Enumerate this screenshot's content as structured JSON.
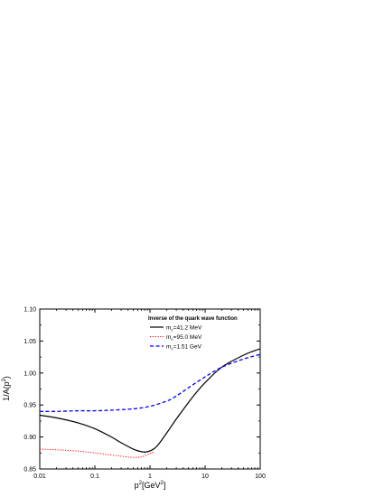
{
  "chart_data": {
    "type": "line",
    "xscale": "log",
    "xlim": [
      0.01,
      100
    ],
    "ylim": [
      0.85,
      1.1
    ],
    "xticks": [
      {
        "value": 0.01,
        "label": "0.01"
      },
      {
        "value": 0.1,
        "label": "0.1"
      },
      {
        "value": 1,
        "label": "1"
      },
      {
        "value": 10,
        "label": "10"
      },
      {
        "value": 100,
        "label": "100"
      }
    ],
    "yticks": [
      {
        "value": 0.85,
        "label": "0.85"
      },
      {
        "value": 0.9,
        "label": "0.90"
      },
      {
        "value": 0.95,
        "label": "0.95"
      },
      {
        "value": 1.0,
        "label": "1.00"
      },
      {
        "value": 1.05,
        "label": "1.05"
      },
      {
        "value": 1.1,
        "label": "1.10"
      }
    ],
    "xlabel": {
      "base": "p",
      "sup": "2",
      "bracket_open": "[GeV",
      "bracket_sup": "2",
      "bracket_close": "]"
    },
    "ylabel": {
      "base": "1/A(p",
      "sup": "2",
      "close": ")"
    },
    "grid": false,
    "legend": {
      "title": "Inverse of the quark wave function",
      "placement": "top-right"
    },
    "series": [
      {
        "name": "m",
        "name_sub": "c",
        "name_rest": "=41.2 MeV",
        "color": "#000000",
        "dash": "solid",
        "x": [
          0.01,
          0.02,
          0.05,
          0.1,
          0.2,
          0.3,
          0.5,
          0.7,
          0.9,
          1.2,
          1.5,
          2,
          3,
          5,
          7,
          10,
          20,
          50,
          100
        ],
        "y": [
          0.934,
          0.93,
          0.922,
          0.913,
          0.9,
          0.891,
          0.881,
          0.877,
          0.877,
          0.882,
          0.891,
          0.906,
          0.928,
          0.954,
          0.97,
          0.985,
          1.009,
          1.028,
          1.038
        ]
      },
      {
        "name": "m",
        "name_sub": "c",
        "name_rest": "=95.0 MeV",
        "color": "#ff0000",
        "dash": "dot",
        "x": [
          0.01,
          0.02,
          0.05,
          0.1,
          0.2,
          0.3,
          0.5,
          0.7,
          1.0,
          1.2
        ],
        "y": [
          0.881,
          0.88,
          0.878,
          0.875,
          0.872,
          0.87,
          0.868,
          0.869,
          0.874,
          0.877
        ]
      },
      {
        "name": "m",
        "name_sub": "c",
        "name_rest": "=1.51 GeV",
        "color": "#0000ff",
        "dash": "dash",
        "x": [
          0.01,
          0.02,
          0.05,
          0.1,
          0.2,
          0.5,
          1,
          2,
          3,
          5,
          10,
          20,
          50,
          100
        ],
        "y": [
          0.94,
          0.94,
          0.941,
          0.941,
          0.942,
          0.944,
          0.948,
          0.956,
          0.964,
          0.977,
          0.994,
          1.009,
          1.022,
          1.029
        ]
      }
    ]
  }
}
